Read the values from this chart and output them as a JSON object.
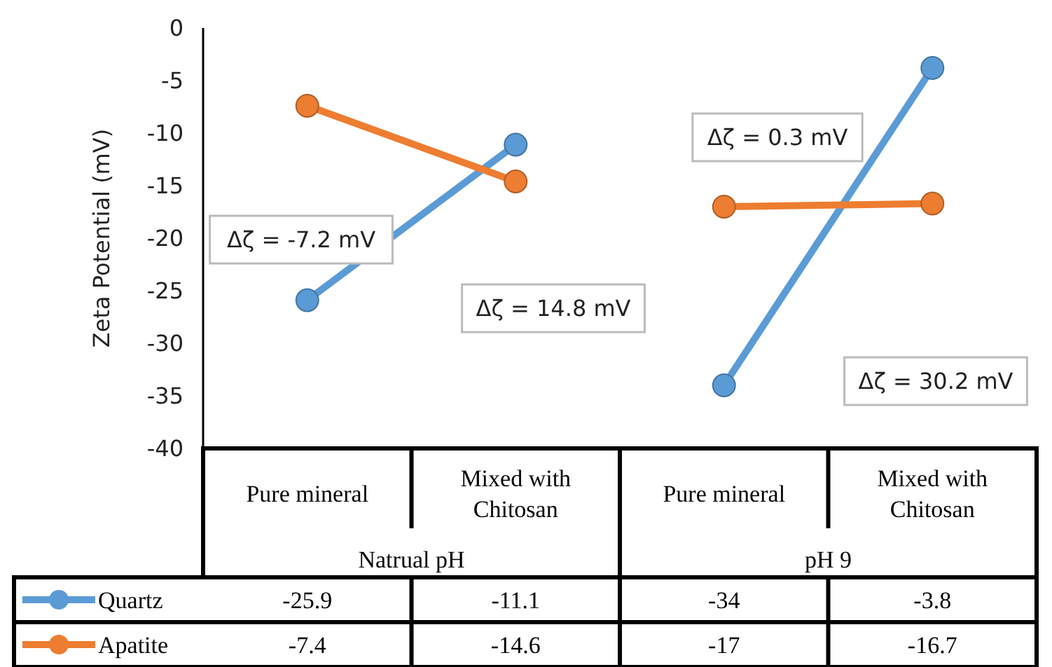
{
  "chart_data": {
    "type": "line",
    "ylabel": "Zeta Potential (mV)",
    "categories": [
      "Pure mineral",
      "Mixed with Chitosan",
      "Pure mineral",
      "Mixed with Chitosan"
    ],
    "series": [
      {
        "name": "Quartz",
        "color": "#5b9bd5",
        "values": [
          -25.9,
          -11.1,
          -34,
          -3.8
        ]
      },
      {
        "name": "Apatite",
        "color": "#ed7d31",
        "values": [
          -7.4,
          -14.6,
          -17,
          -16.7
        ]
      }
    ],
    "ylim": [
      -40,
      0
    ],
    "yticks": [
      -40,
      -35,
      -30,
      -25,
      -20,
      -15,
      -10,
      -5,
      0
    ],
    "marker": "circle",
    "data_labels": true,
    "legend": "bottom left",
    "annotations": [
      "Δζ = -7.2 mV",
      "Δζ = 14.8 mV",
      "Δζ = 0.3 mV",
      "Δζ = 30.2 mV",
      "Natrual pH",
      "pH 9"
    ]
  }
}
